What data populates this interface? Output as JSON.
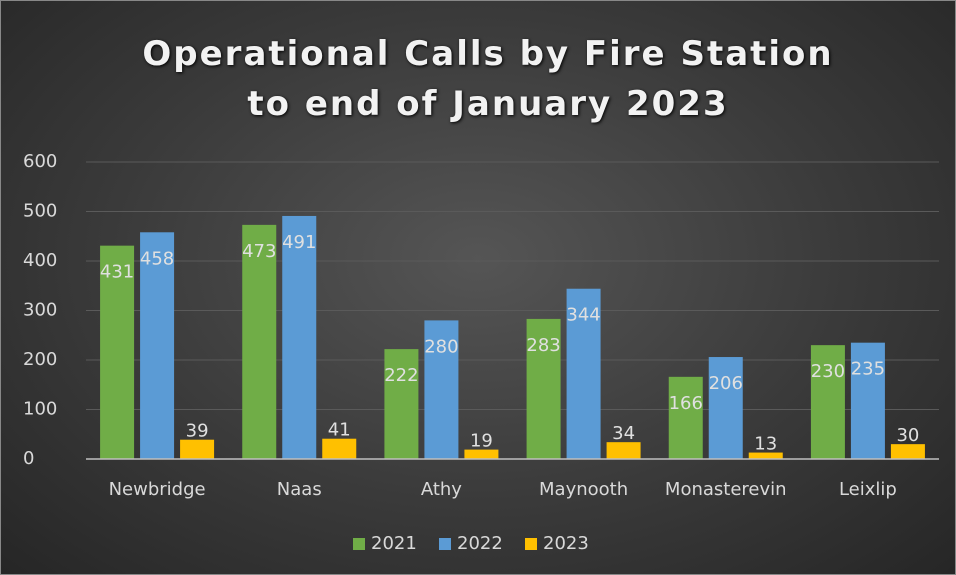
{
  "chart_data": {
    "type": "bar",
    "title": "Operational Calls by Fire Station to end of  January 2023",
    "categories": [
      "Newbridge",
      "Naas",
      "Athy",
      "Maynooth",
      "Monasterevin",
      "Leixlip"
    ],
    "series": [
      {
        "name": "2021",
        "color": "#70ad47",
        "values": [
          431,
          473,
          222,
          283,
          166,
          230
        ]
      },
      {
        "name": "2022",
        "color": "#5b9bd5",
        "values": [
          458,
          491,
          280,
          344,
          206,
          235
        ]
      },
      {
        "name": "2023",
        "color": "#ffc000",
        "values": [
          39,
          41,
          19,
          34,
          13,
          30
        ]
      }
    ],
    "ylim": [
      0,
      600
    ],
    "yticks": [
      0,
      100,
      200,
      300,
      400,
      500,
      600
    ],
    "grid": true,
    "legend": "bottom"
  }
}
